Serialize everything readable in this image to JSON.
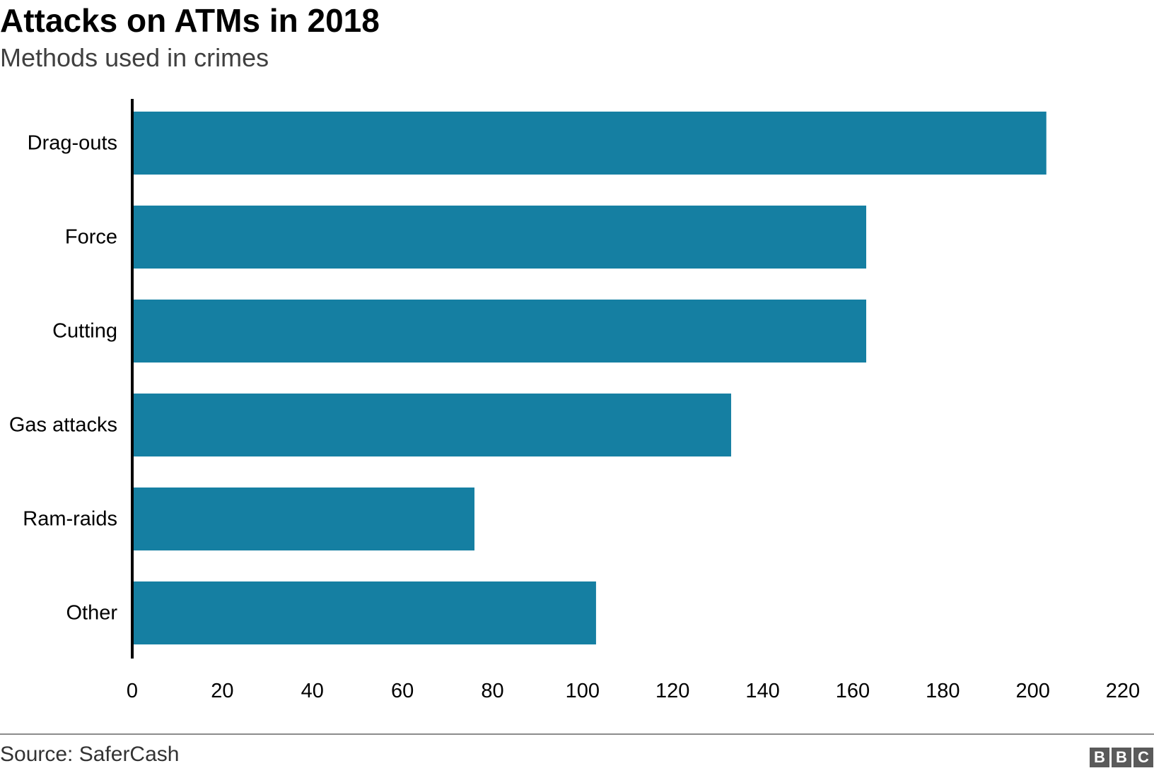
{
  "chart_data": {
    "type": "bar",
    "orientation": "horizontal",
    "title": "Attacks on ATMs in 2018",
    "subtitle": "Methods used in crimes",
    "categories": [
      "Drag-outs",
      "Force",
      "Cutting",
      "Gas attacks",
      "Ram-raids",
      "Other"
    ],
    "values": [
      203,
      163,
      163,
      133,
      76,
      103
    ],
    "xlim": [
      0,
      220
    ],
    "xticks": [
      0,
      20,
      40,
      60,
      80,
      100,
      120,
      140,
      160,
      180,
      200,
      220
    ],
    "xlabel": "",
    "ylabel": "",
    "grid": false,
    "bar_color": "#157fa2",
    "source": "Source: SaferCash"
  },
  "logo": {
    "letters": [
      "B",
      "B",
      "C"
    ]
  }
}
